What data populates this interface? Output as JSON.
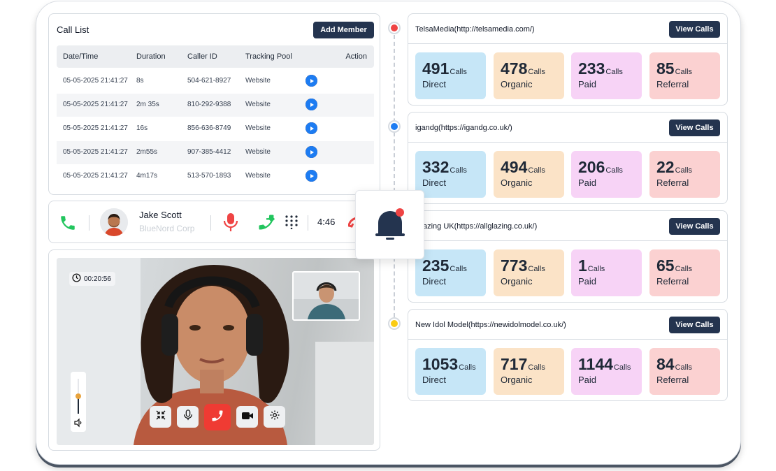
{
  "call_list": {
    "title": "Call List",
    "add_button": "Add Member",
    "columns": [
      "Date/Time",
      "Duration",
      "Caller ID",
      "Tracking Pool",
      "Action"
    ],
    "rows": [
      {
        "datetime": "05-05-2025 21:41:27",
        "duration": "8s",
        "caller_id": "504-621-8927",
        "pool": "Website"
      },
      {
        "datetime": "05-05-2025 21:41:27",
        "duration": "2m 35s",
        "caller_id": "810-292-9388",
        "pool": "Website"
      },
      {
        "datetime": "05-05-2025 21:41:27",
        "duration": "16s",
        "caller_id": "856-636-8749",
        "pool": "Website"
      },
      {
        "datetime": "05-05-2025 21:41:27",
        "duration": "2m55s",
        "caller_id": "907-385-4412",
        "pool": "Website"
      },
      {
        "datetime": "05-05-2025 21:41:27",
        "duration": "4m17s",
        "caller_id": "513-570-1893",
        "pool": "Website"
      }
    ],
    "row_action_icons": [
      "trash-icon",
      "eye-icon",
      "block-icon",
      "play-icon"
    ]
  },
  "call_bar": {
    "name": "Jake Scott",
    "company": "BlueNord Corp",
    "elapsed": "4:46",
    "icons": [
      "phone-icon",
      "microphone-icon",
      "call-transfer-icon",
      "keypad-icon",
      "hang-up-icon"
    ]
  },
  "video_call": {
    "timer": "00:20:56",
    "volume_level": 0.5,
    "controls": [
      "collapse-icon",
      "microphone-icon",
      "hang-up-icon",
      "video-camera-icon",
      "settings-icon"
    ]
  },
  "sources": [
    {
      "name": "TelsaMedia(http://telsamedia.com/)",
      "dot_color": "#ef4444",
      "stats": [
        {
          "value": "491",
          "unit": "Calls",
          "label": "Direct"
        },
        {
          "value": "478",
          "unit": "Calls",
          "label": "Organic"
        },
        {
          "value": "233",
          "unit": "Calls",
          "label": "Paid"
        },
        {
          "value": "85",
          "unit": "Calls",
          "label": "Referral"
        }
      ]
    },
    {
      "name": "igandg(https://igandg.co.uk/)",
      "dot_color": "#1d7cf2",
      "stats": [
        {
          "value": "332",
          "unit": "Calls",
          "label": "Direct"
        },
        {
          "value": "494",
          "unit": "Calls",
          "label": "Organic"
        },
        {
          "value": "206",
          "unit": "Calls",
          "label": "Paid"
        },
        {
          "value": "22",
          "unit": "Calls",
          "label": "Referral"
        }
      ]
    },
    {
      "name": "Glazing UK(https://allglazing.co.uk/)",
      "dot_color": "#22c55e",
      "stats": [
        {
          "value": "235",
          "unit": "Calls",
          "label": "Direct"
        },
        {
          "value": "773",
          "unit": "Calls",
          "label": "Organic"
        },
        {
          "value": "1",
          "unit": "Calls",
          "label": "Paid"
        },
        {
          "value": "65",
          "unit": "Calls",
          "label": "Referral"
        }
      ]
    },
    {
      "name": "New Idol Model(https://newidolmodel.co.uk/)",
      "dot_color": "#facc15",
      "stats": [
        {
          "value": "1053",
          "unit": "Calls",
          "label": "Direct"
        },
        {
          "value": "717",
          "unit": "Calls",
          "label": "Organic"
        },
        {
          "value": "1144",
          "unit": "Calls",
          "label": "Paid"
        },
        {
          "value": "84",
          "unit": "Calls",
          "label": "Referral"
        }
      ]
    }
  ],
  "view_calls_label": "View Calls",
  "colors": {
    "accent_dark": "#24344f",
    "direct": "#c6e6f7",
    "organic": "#fbe3c7",
    "paid": "#f7d3f6",
    "referral": "#fbd1d1",
    "bell": "#24344f",
    "notify_dot": "#ef4444"
  }
}
